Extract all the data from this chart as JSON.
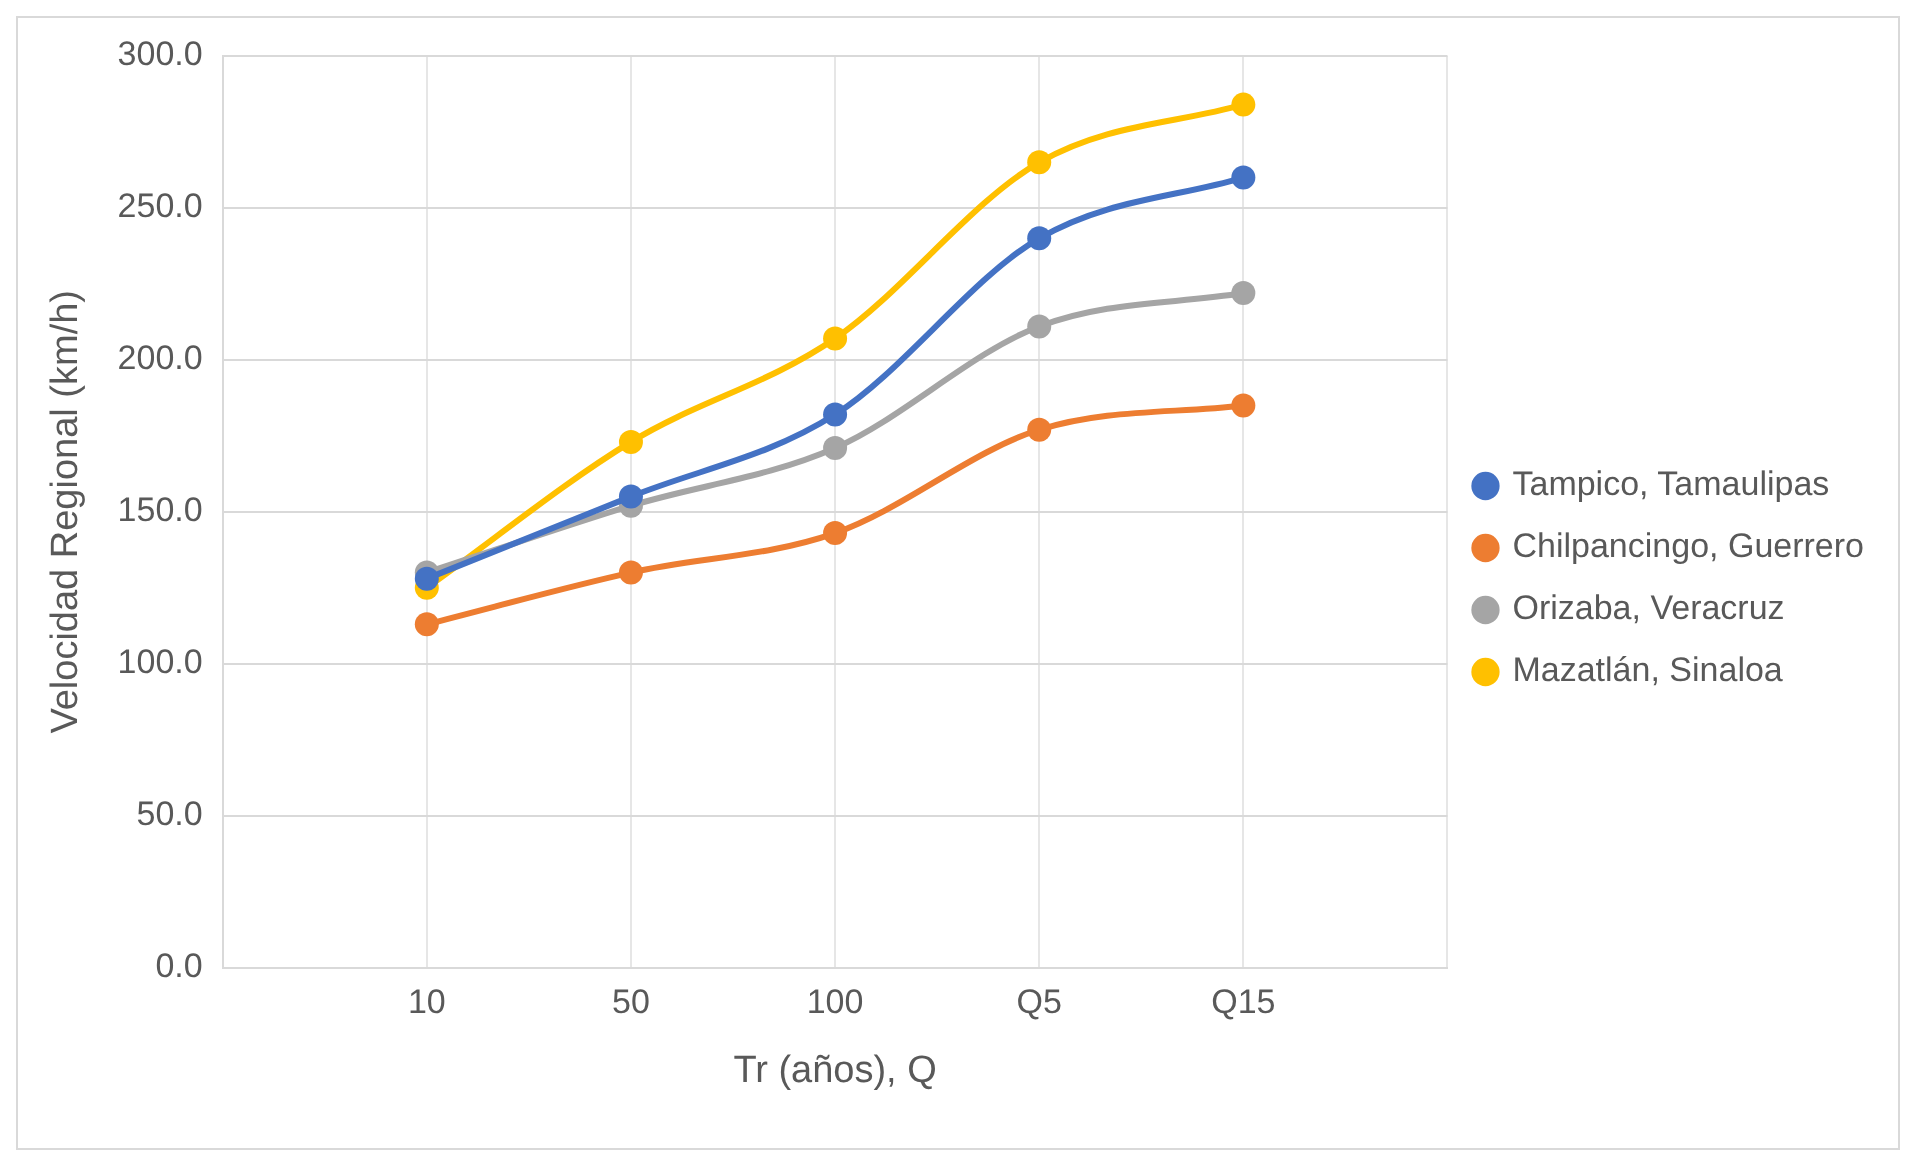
{
  "chart_data": {
    "type": "line",
    "xlabel": "Tr (años), Q",
    "ylabel": "Velocidad Regional (km/h)",
    "categories": [
      null,
      "10",
      "50",
      "100",
      "Q5",
      "Q15",
      null
    ],
    "series": [
      {
        "name": "Tampico, Tamaulipas",
        "color": "#4472c4",
        "values": [
          null,
          128,
          155,
          182,
          240,
          260,
          null
        ]
      },
      {
        "name": "Chilpancingo, Guerrero",
        "color": "#ed7d31",
        "values": [
          null,
          113,
          130,
          143,
          177,
          185,
          null
        ]
      },
      {
        "name": "Orizaba, Veracruz",
        "color": "#a5a5a5",
        "values": [
          null,
          130,
          152,
          171,
          211,
          222,
          null
        ]
      },
      {
        "name": "Mazatlán, Sinaloa",
        "color": "#ffc000",
        "values": [
          null,
          125,
          173,
          207,
          265,
          284,
          null
        ]
      }
    ],
    "ylim": [
      0,
      300
    ],
    "yticks": [
      {
        "value": 0,
        "label": "0.0"
      },
      {
        "value": 50,
        "label": "50.0"
      },
      {
        "value": 100,
        "label": "100.0"
      },
      {
        "value": 150,
        "label": "150.0"
      },
      {
        "value": 200,
        "label": "200.0"
      },
      {
        "value": 250,
        "label": "250.0"
      },
      {
        "value": 300,
        "label": "300.0"
      }
    ],
    "grid": true,
    "legend": "right",
    "marker": "circle",
    "line_style": "solid"
  }
}
